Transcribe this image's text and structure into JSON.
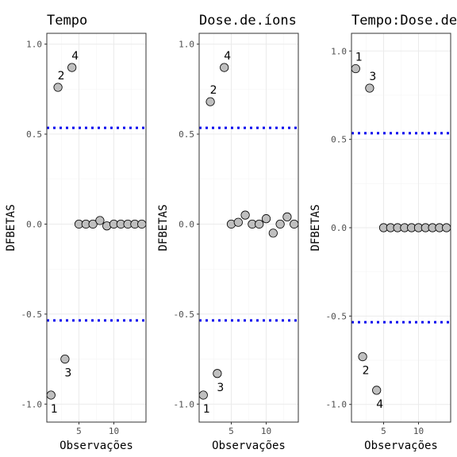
{
  "chart_data": [
    {
      "type": "scatter",
      "title": "Tempo",
      "xlabel": "Observações",
      "ylabel": "DFBETAS",
      "x_ticks": [
        5,
        10
      ],
      "y_ticks": [
        -1.0,
        -0.5,
        0.0,
        0.5,
        1.0
      ],
      "y_tick_labels": [
        "-1.0",
        "-0.5",
        "0.0",
        "0.5",
        "1.0"
      ],
      "x_tick_labels": [
        "5",
        "10"
      ],
      "xlim": [
        0.4,
        14.6
      ],
      "ylim": [
        -1.1,
        1.06
      ],
      "cutoff": [
        0.535,
        -0.535
      ],
      "x": [
        1,
        2,
        3,
        4,
        5,
        6,
        7,
        8,
        9,
        10,
        11,
        12,
        13,
        14
      ],
      "y": [
        -0.95,
        0.76,
        -0.75,
        0.87,
        0.0,
        0.0,
        0.0,
        0.02,
        -0.01,
        0.0,
        0.0,
        0.0,
        0.0,
        0.0
      ],
      "labels": [
        {
          "text": "1",
          "index": 0
        },
        {
          "text": "2",
          "index": 1
        },
        {
          "text": "3",
          "index": 2
        },
        {
          "text": "4",
          "index": 3
        }
      ]
    },
    {
      "type": "scatter",
      "title": "Dose.de.íons",
      "xlabel": "Observações",
      "ylabel": "DFBETAS",
      "x_ticks": [
        5,
        10
      ],
      "y_ticks": [
        -1.0,
        -0.5,
        0.0,
        0.5,
        1.0
      ],
      "y_tick_labels": [
        "-1.0",
        "-0.5",
        "0.0",
        "0.5",
        "1.0"
      ],
      "x_tick_labels": [
        "5",
        "10"
      ],
      "xlim": [
        0.4,
        14.6
      ],
      "ylim": [
        -1.1,
        1.06
      ],
      "cutoff": [
        0.535,
        -0.535
      ],
      "x": [
        1,
        2,
        3,
        4,
        5,
        6,
        7,
        8,
        9,
        10,
        11,
        12,
        13,
        14
      ],
      "y": [
        -0.95,
        0.68,
        -0.83,
        0.87,
        0.0,
        0.01,
        0.05,
        0.0,
        0.0,
        0.03,
        -0.05,
        0.0,
        0.04,
        0.0
      ],
      "labels": [
        {
          "text": "1",
          "index": 0
        },
        {
          "text": "2",
          "index": 1
        },
        {
          "text": "3",
          "index": 2
        },
        {
          "text": "4",
          "index": 3
        }
      ]
    },
    {
      "type": "scatter",
      "title": "Tempo:Dose.de.íons",
      "xlabel": "Observações",
      "ylabel": "DFBETAS",
      "x_ticks": [
        5,
        10
      ],
      "y_ticks": [
        -1.0,
        -0.5,
        0.0,
        0.5,
        1.0
      ],
      "y_tick_labels": [
        "-1.0",
        "-0.5",
        "0.0",
        "0.5",
        "1.0"
      ],
      "x_tick_labels": [
        "5",
        "10"
      ],
      "xlim": [
        0.4,
        14.6
      ],
      "ylim": [
        -1.1,
        1.1
      ],
      "cutoff": [
        0.535,
        -0.535
      ],
      "x": [
        1,
        2,
        3,
        4,
        5,
        6,
        7,
        8,
        9,
        10,
        11,
        12,
        13,
        14
      ],
      "y": [
        0.9,
        -0.73,
        0.79,
        -0.92,
        0.0,
        0.0,
        0.0,
        0.0,
        0.0,
        0.0,
        0.0,
        0.0,
        0.0,
        0.0
      ],
      "labels": [
        {
          "text": "1",
          "index": 0
        },
        {
          "text": "2",
          "index": 1
        },
        {
          "text": "3",
          "index": 2
        },
        {
          "text": "4",
          "index": 3
        }
      ]
    }
  ],
  "colors": {
    "point_fill": "#bfbfbf",
    "point_stroke": "#000000",
    "cutoff_line": "#0000ee",
    "panel_border": "#333333",
    "grid": "#ebebeb"
  }
}
